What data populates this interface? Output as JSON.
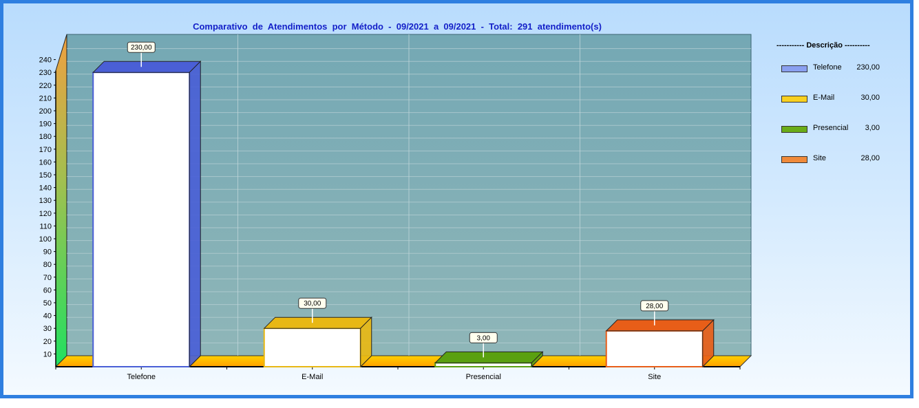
{
  "chart_data": {
    "type": "bar",
    "title": "Comparativo  de  Atendimentos  por  Método  -  09/2021  a  09/2021  -  Total:  291  atendimento(s)",
    "categories": [
      "Telefone",
      "E-Mail",
      "Presencial",
      "Site"
    ],
    "values": [
      230,
      30,
      3,
      28
    ],
    "value_labels": [
      "230,00",
      "30,00",
      "3,00",
      "28,00"
    ],
    "colors": [
      "#4a5fd6",
      "#e8b814",
      "#5aa010",
      "#e85e18"
    ],
    "ylim": [
      0,
      240
    ],
    "yticks": [
      10,
      20,
      30,
      40,
      50,
      60,
      70,
      80,
      90,
      100,
      110,
      120,
      130,
      140,
      150,
      160,
      170,
      180,
      190,
      200,
      210,
      220,
      230,
      240
    ],
    "grid": true,
    "three_d": true,
    "legend_position": "right",
    "legend": {
      "title": "----------- Descrição ----------",
      "items": [
        {
          "label": "Telefone",
          "value": "230,00",
          "color": "#8aa0f0"
        },
        {
          "label": "E-Mail",
          "value": "30,00",
          "color": "#f8d020"
        },
        {
          "label": "Presencial",
          "value": "3,00",
          "color": "#6aac18"
        },
        {
          "label": "Site",
          "value": "28,00",
          "color": "#f08a3a"
        }
      ]
    }
  }
}
